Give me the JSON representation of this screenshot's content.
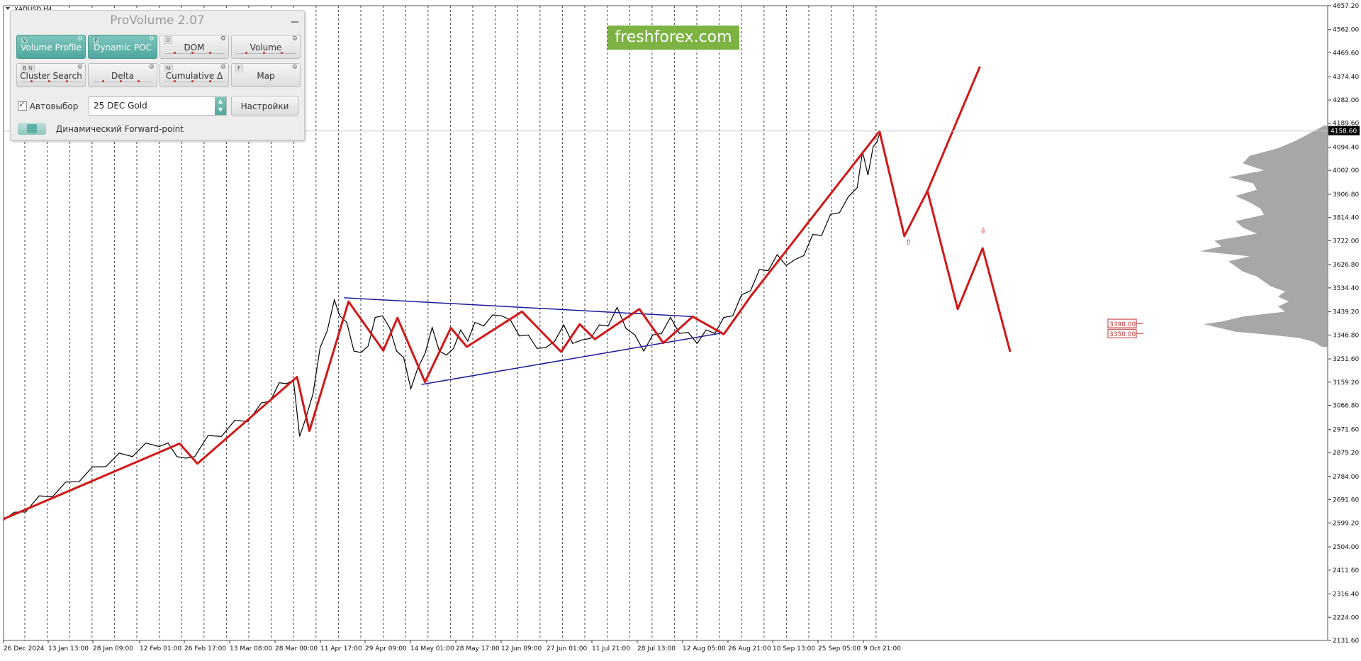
{
  "symbol": "XAUUSD,H4",
  "indicator_panel": {
    "title": "ProVolume 2.07",
    "buttons": [
      {
        "label": "Volume Profile",
        "hotkey": "V",
        "active": true,
        "dots": false
      },
      {
        "label": "Dynamic POC",
        "hotkey": "P",
        "active": true,
        "dots": false
      },
      {
        "label": "DOM",
        "hotkey": "D",
        "active": false,
        "dots": true
      },
      {
        "label": "Volume",
        "hotkey": "",
        "active": false,
        "dots": true
      },
      {
        "label": "Cluster Search",
        "hotkey": "B N",
        "active": false,
        "dots": true
      },
      {
        "label": "Delta",
        "hotkey": "",
        "active": false,
        "dots": true
      },
      {
        "label": "Cumulative Δ",
        "hotkey": "M",
        "active": false,
        "dots": true
      },
      {
        "label": "Map",
        "hotkey": "F",
        "active": false,
        "dots": false
      }
    ],
    "autoselect_label": "Автовыбор",
    "autoselect_checked": true,
    "instrument_value": "25 DEC Gold",
    "settings_label": "Настройки",
    "forward_point_label": "Динамический Forward-point"
  },
  "watermark": "freshforex.com",
  "colors": {
    "zigzag": "#d01818",
    "triangle": "#1a1a9a",
    "price_line": "#000000",
    "profile": "#8a8a8a",
    "level_box": "#c03030",
    "logo_bg": "#7cb342"
  },
  "chart_data": {
    "type": "line",
    "ylim": [
      2131.6,
      4657.2
    ],
    "y_ticks": [
      "4657.20",
      "4562.00",
      "4469.60",
      "4374.40",
      "4282.00",
      "4189.60",
      "4094.40",
      "4002.00",
      "3906.80",
      "3814.40",
      "3722.00",
      "3626.80",
      "3534.40",
      "3439.20",
      "3346.80",
      "3251.60",
      "3159.20",
      "3066.80",
      "2971.60",
      "2879.20",
      "2784.00",
      "2691.60",
      "2599.20",
      "2504.00",
      "2411.60",
      "2316.40",
      "2224.00",
      "2131.60"
    ],
    "x_ticks": [
      "26 Dec 2024",
      "13 Jan 13:00",
      "28 Jan 09:00",
      "12 Feb 01:00",
      "26 Feb 17:00",
      "13 Mar 08:00",
      "28 Mar 00:00",
      "11 Apr 17:00",
      "29 Apr 09:00",
      "14 May 01:00",
      "28 May 17:00",
      "12 Jun 09:00",
      "27 Jun 01:00",
      "11 Jul 21:00",
      "28 Jul 13:00",
      "12 Aug 05:00",
      "26 Aug 21:00",
      "10 Sep 13:00",
      "25 Sep 05:00",
      "9 Oct 21:00"
    ],
    "current_price": "4158.60",
    "price_series": [
      [
        0,
        2610
      ],
      [
        12,
        2625
      ],
      [
        25,
        2660
      ],
      [
        40,
        2690
      ],
      [
        55,
        2720
      ],
      [
        70,
        2745
      ],
      [
        85,
        2780
      ],
      [
        100,
        2805
      ],
      [
        115,
        2840
      ],
      [
        130,
        2860
      ],
      [
        145,
        2880
      ],
      [
        160,
        2900
      ],
      [
        175,
        2920
      ],
      [
        185,
        2900
      ],
      [
        195,
        2880
      ],
      [
        205,
        2840
      ],
      [
        215,
        2880
      ],
      [
        230,
        2930
      ],
      [
        245,
        2960
      ],
      [
        260,
        2990
      ],
      [
        275,
        3020
      ],
      [
        290,
        3060
      ],
      [
        300,
        3100
      ],
      [
        310,
        3140
      ],
      [
        318,
        3170
      ],
      [
        326,
        3150
      ],
      [
        333,
        2960
      ],
      [
        340,
        3000
      ],
      [
        348,
        3130
      ],
      [
        356,
        3280
      ],
      [
        364,
        3380
      ],
      [
        372,
        3470
      ],
      [
        378,
        3440
      ],
      [
        386,
        3380
      ],
      [
        394,
        3300
      ],
      [
        402,
        3260
      ],
      [
        410,
        3320
      ],
      [
        418,
        3400
      ],
      [
        426,
        3440
      ],
      [
        434,
        3360
      ],
      [
        442,
        3300
      ],
      [
        450,
        3240
      ],
      [
        458,
        3150
      ],
      [
        466,
        3200
      ],
      [
        474,
        3290
      ],
      [
        482,
        3360
      ],
      [
        490,
        3300
      ],
      [
        498,
        3250
      ],
      [
        506,
        3310
      ],
      [
        514,
        3350
      ],
      [
        522,
        3340
      ],
      [
        530,
        3380
      ],
      [
        540,
        3400
      ],
      [
        550,
        3410
      ],
      [
        560,
        3440
      ],
      [
        570,
        3390
      ],
      [
        580,
        3360
      ],
      [
        590,
        3330
      ],
      [
        600,
        3310
      ],
      [
        610,
        3280
      ],
      [
        620,
        3340
      ],
      [
        630,
        3370
      ],
      [
        640,
        3330
      ],
      [
        650,
        3310
      ],
      [
        660,
        3350
      ],
      [
        670,
        3370
      ],
      [
        680,
        3400
      ],
      [
        690,
        3440
      ],
      [
        700,
        3390
      ],
      [
        710,
        3330
      ],
      [
        720,
        3300
      ],
      [
        730,
        3330
      ],
      [
        740,
        3370
      ],
      [
        750,
        3400
      ],
      [
        760,
        3370
      ],
      [
        770,
        3340
      ],
      [
        780,
        3330
      ],
      [
        790,
        3350
      ],
      [
        800,
        3370
      ],
      [
        810,
        3400
      ],
      [
        820,
        3440
      ],
      [
        830,
        3490
      ],
      [
        840,
        3540
      ],
      [
        850,
        3590
      ],
      [
        860,
        3620
      ],
      [
        870,
        3650
      ],
      [
        880,
        3640
      ],
      [
        890,
        3630
      ],
      [
        900,
        3680
      ],
      [
        910,
        3730
      ],
      [
        920,
        3760
      ],
      [
        930,
        3810
      ],
      [
        940,
        3850
      ],
      [
        950,
        3880
      ],
      [
        960,
        3950
      ],
      [
        966,
        4060
      ],
      [
        972,
        4000
      ],
      [
        978,
        4080
      ],
      [
        982,
        4130
      ],
      [
        986,
        4158
      ]
    ],
    "zigzag": [
      [
        0,
        2615
      ],
      [
        198,
        2915
      ],
      [
        218,
        2835
      ],
      [
        330,
        3180
      ],
      [
        344,
        2965
      ],
      [
        388,
        3480
      ],
      [
        427,
        3285
      ],
      [
        443,
        3415
      ],
      [
        474,
        3160
      ],
      [
        503,
        3375
      ],
      [
        521,
        3300
      ],
      [
        583,
        3440
      ],
      [
        627,
        3280
      ],
      [
        648,
        3390
      ],
      [
        665,
        3330
      ],
      [
        715,
        3450
      ],
      [
        742,
        3315
      ],
      [
        775,
        3420
      ],
      [
        810,
        3350
      ],
      [
        840,
        3500
      ],
      [
        985,
        4158
      ],
      [
        1013,
        3740
      ],
      [
        1039,
        3920
      ],
      [
        1073,
        3450
      ],
      [
        1101,
        3692
      ],
      [
        1132,
        3280
      ]
    ],
    "zigzag_forecast_up": [
      [
        1039,
        3920
      ],
      [
        1098,
        4415
      ]
    ],
    "triangle_upper": [
      [
        383,
        3495
      ],
      [
        775,
        3420
      ]
    ],
    "triangle_lower": [
      [
        470,
        3150
      ],
      [
        808,
        3355
      ]
    ],
    "levels": [
      {
        "label": "3390.00",
        "value": 3390
      },
      {
        "label": "3350.00",
        "value": 3350
      }
    ],
    "signal_up_arrow": {
      "x": 1017,
      "value": 3705
    },
    "signal_down_arrow": {
      "x": 1101,
      "value": 3752
    },
    "grid": "vertical dotted",
    "volume_profile": [
      [
        4180,
        5
      ],
      [
        4150,
        25
      ],
      [
        4120,
        45
      ],
      [
        4090,
        70
      ],
      [
        4060,
        110
      ],
      [
        4030,
        120
      ],
      [
        4002,
        90
      ],
      [
        3975,
        140
      ],
      [
        3950,
        105
      ],
      [
        3925,
        100
      ],
      [
        3900,
        130
      ],
      [
        3875,
        110
      ],
      [
        3850,
        95
      ],
      [
        3825,
        90
      ],
      [
        3800,
        130
      ],
      [
        3775,
        120
      ],
      [
        3750,
        100
      ],
      [
        3722,
        160
      ],
      [
        3700,
        150
      ],
      [
        3680,
        180
      ],
      [
        3660,
        110
      ],
      [
        3640,
        140
      ],
      [
        3620,
        130
      ],
      [
        3600,
        120
      ],
      [
        3580,
        100
      ],
      [
        3560,
        90
      ],
      [
        3540,
        80
      ],
      [
        3520,
        60
      ],
      [
        3500,
        70
      ],
      [
        3480,
        55
      ],
      [
        3460,
        70
      ],
      [
        3440,
        60
      ],
      [
        3420,
        120
      ],
      [
        3400,
        150
      ],
      [
        3390,
        175
      ],
      [
        3380,
        160
      ],
      [
        3360,
        130
      ],
      [
        3350,
        90
      ],
      [
        3335,
        40
      ],
      [
        3320,
        20
      ],
      [
        3300,
        8
      ]
    ]
  }
}
